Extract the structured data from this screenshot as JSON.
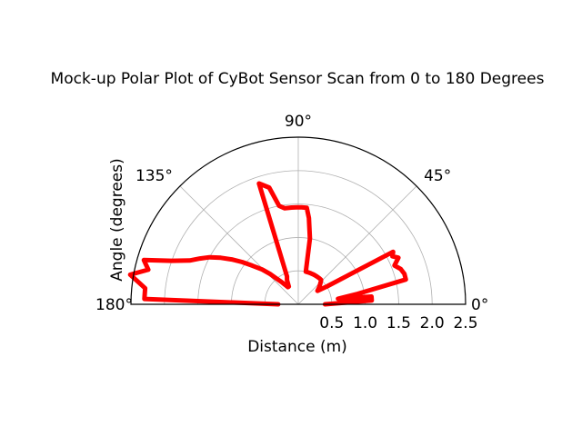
{
  "chart_data": {
    "type": "line",
    "projection": "polar",
    "title": "Mock-up Polar Plot of CyBot Sensor Scan from 0 to 180 Degrees",
    "xlabel": "Distance (m)",
    "ylabel": "Angle (degrees)",
    "angle_range_deg": [
      0,
      180
    ],
    "r_range": [
      0,
      2.5
    ],
    "angle_ticks": [
      "0°",
      "45°",
      "90°",
      "135°",
      "180°"
    ],
    "angle_tick_values_deg": [
      0,
      45,
      90,
      135,
      180
    ],
    "r_ticks": [
      "0.5",
      "1.0",
      "1.5",
      "2.0",
      "2.5"
    ],
    "r_tick_values": [
      0.5,
      1.0,
      1.5,
      2.0,
      2.5
    ],
    "grid": true,
    "series": [
      {
        "color": "#ff0000",
        "angles_deg": [
          0,
          3,
          6,
          8,
          10,
          13,
          16,
          19,
          22,
          25,
          27,
          29,
          32,
          35,
          39,
          43,
          47,
          51,
          56,
          60,
          64,
          68,
          73,
          77,
          80,
          83,
          85,
          88,
          91,
          94,
          98,
          101,
          104,
          108,
          112,
          115,
          118,
          121,
          124,
          127,
          130,
          133,
          136,
          140,
          143,
          146,
          149,
          152,
          155,
          158,
          161,
          164,
          167,
          170,
          174,
          178,
          180
        ],
        "r": [
          0.4,
          1.1,
          1.1,
          0.6,
          0.9,
          1.65,
          1.65,
          1.62,
          1.55,
          1.65,
          1.58,
          1.62,
          0.5,
          0.35,
          0.4,
          0.45,
          0.5,
          0.5,
          0.5,
          0.5,
          0.5,
          0.5,
          0.5,
          0.5,
          1.0,
          1.3,
          1.45,
          1.45,
          1.45,
          1.45,
          1.45,
          1.5,
          1.8,
          1.9,
          0.45,
          0.4,
          0.3,
          0.3,
          0.35,
          0.42,
          0.5,
          0.62,
          0.75,
          0.9,
          1.05,
          1.2,
          1.35,
          1.5,
          1.62,
          1.75,
          2.0,
          2.4,
          2.3,
          2.55,
          2.3,
          2.3,
          0.3
        ]
      }
    ]
  }
}
